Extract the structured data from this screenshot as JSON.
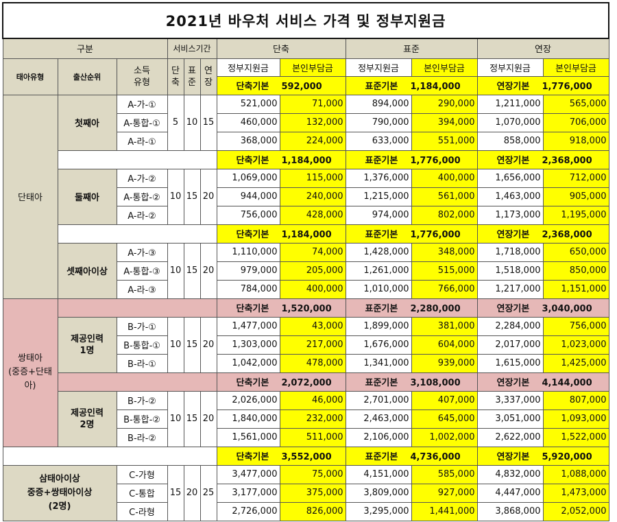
{
  "title": "2021년 바우처 서비스 가격 및 정부지원금",
  "header": {
    "gubun": "구분",
    "service_period": "서비스기간",
    "short": "단축",
    "standard": "표준",
    "extended": "연장",
    "fetus_type": "태아유형",
    "birth_order": "출산순위",
    "income_type": "소득\n유형",
    "p_short": "단\n축",
    "p_std": "표\n준",
    "p_ext": "연\n장",
    "gov": "정부지원금",
    "self": "본인부담금"
  },
  "labels": {
    "short_base": "단축기본",
    "std_base": "표준기본",
    "ext_base": "연장기본"
  },
  "groups": [
    {
      "name": "단태아"
    },
    {
      "name": "쌍태아\n(중증+단태\n아)"
    },
    {
      "name": "삼태아이상\n중증+쌍태아이상\n(2명)"
    }
  ],
  "subgroups": [
    {
      "order": "첫째아",
      "days": [
        "5",
        "10",
        "15"
      ],
      "base": {
        "short": "592,000",
        "std": "1,184,000",
        "ext": "1,776,000"
      },
      "rows": [
        {
          "type": "A-가-①",
          "v": [
            "521,000",
            "71,000",
            "894,000",
            "290,000",
            "1,211,000",
            "565,000"
          ]
        },
        {
          "type": "A-통합-①",
          "v": [
            "460,000",
            "132,000",
            "790,000",
            "394,000",
            "1,070,000",
            "706,000"
          ]
        },
        {
          "type": "A-라-①",
          "v": [
            "368,000",
            "224,000",
            "633,000",
            "551,000",
            "858,000",
            "918,000"
          ]
        }
      ]
    },
    {
      "order": "둘째아",
      "days": [
        "10",
        "15",
        "20"
      ],
      "base": {
        "short": "1,184,000",
        "std": "1,776,000",
        "ext": "2,368,000"
      },
      "rows": [
        {
          "type": "A-가-②",
          "v": [
            "1,069,000",
            "115,000",
            "1,376,000",
            "400,000",
            "1,656,000",
            "712,000"
          ]
        },
        {
          "type": "A-통합-②",
          "v": [
            "944,000",
            "240,000",
            "1,215,000",
            "561,000",
            "1,463,000",
            "905,000"
          ]
        },
        {
          "type": "A-라-②",
          "v": [
            "756,000",
            "428,000",
            "974,000",
            "802,000",
            "1,173,000",
            "1,195,000"
          ]
        }
      ]
    },
    {
      "order": "셋째아이상",
      "days": [
        "10",
        "15",
        "20"
      ],
      "base": {
        "short": "1,184,000",
        "std": "1,776,000",
        "ext": "2,368,000"
      },
      "rows": [
        {
          "type": "A-가-③",
          "v": [
            "1,110,000",
            "74,000",
            "1,428,000",
            "348,000",
            "1,718,000",
            "650,000"
          ]
        },
        {
          "type": "A-통합-③",
          "v": [
            "979,000",
            "205,000",
            "1,261,000",
            "515,000",
            "1,518,000",
            "850,000"
          ]
        },
        {
          "type": "A-라-③",
          "v": [
            "784,000",
            "400,000",
            "1,010,000",
            "766,000",
            "1,217,000",
            "1,151,000"
          ]
        }
      ]
    },
    {
      "order": "제공인력\n1명",
      "days": [
        "10",
        "15",
        "20"
      ],
      "base": {
        "short": "1,520,000",
        "std": "2,280,000",
        "ext": "3,040,000"
      },
      "rows": [
        {
          "type": "B-가-①",
          "v": [
            "1,477,000",
            "43,000",
            "1,899,000",
            "381,000",
            "2,284,000",
            "756,000"
          ]
        },
        {
          "type": "B-통합-①",
          "v": [
            "1,303,000",
            "217,000",
            "1,676,000",
            "604,000",
            "2,017,000",
            "1,023,000"
          ]
        },
        {
          "type": "B-라-①",
          "v": [
            "1,042,000",
            "478,000",
            "1,341,000",
            "939,000",
            "1,615,000",
            "1,425,000"
          ]
        }
      ]
    },
    {
      "order": "제공인력\n2명",
      "days": [
        "10",
        "15",
        "20"
      ],
      "base": {
        "short": "2,072,000",
        "std": "3,108,000",
        "ext": "4,144,000"
      },
      "rows": [
        {
          "type": "B-가-②",
          "v": [
            "2,026,000",
            "46,000",
            "2,701,000",
            "407,000",
            "3,337,000",
            "807,000"
          ]
        },
        {
          "type": "B-통합-②",
          "v": [
            "1,840,000",
            "232,000",
            "2,463,000",
            "645,000",
            "3,051,000",
            "1,093,000"
          ]
        },
        {
          "type": "B-라-②",
          "v": [
            "1,561,000",
            "511,000",
            "2,106,000",
            "1,002,000",
            "2,622,000",
            "1,522,000"
          ]
        }
      ]
    },
    {
      "order": "",
      "days": [
        "15",
        "20",
        "25"
      ],
      "base": {
        "short": "3,552,000",
        "std": "4,736,000",
        "ext": "5,920,000"
      },
      "rows": [
        {
          "type": "C-가형",
          "v": [
            "3,477,000",
            "75,000",
            "4,151,000",
            "585,000",
            "4,832,000",
            "1,088,000"
          ]
        },
        {
          "type": "C-통합",
          "v": [
            "3,177,000",
            "375,000",
            "3,809,000",
            "927,000",
            "4,447,000",
            "1,473,000"
          ]
        },
        {
          "type": "C-라형",
          "v": [
            "2,726,000",
            "826,000",
            "3,295,000",
            "1,441,000",
            "3,868,000",
            "2,052,000"
          ]
        }
      ]
    }
  ]
}
